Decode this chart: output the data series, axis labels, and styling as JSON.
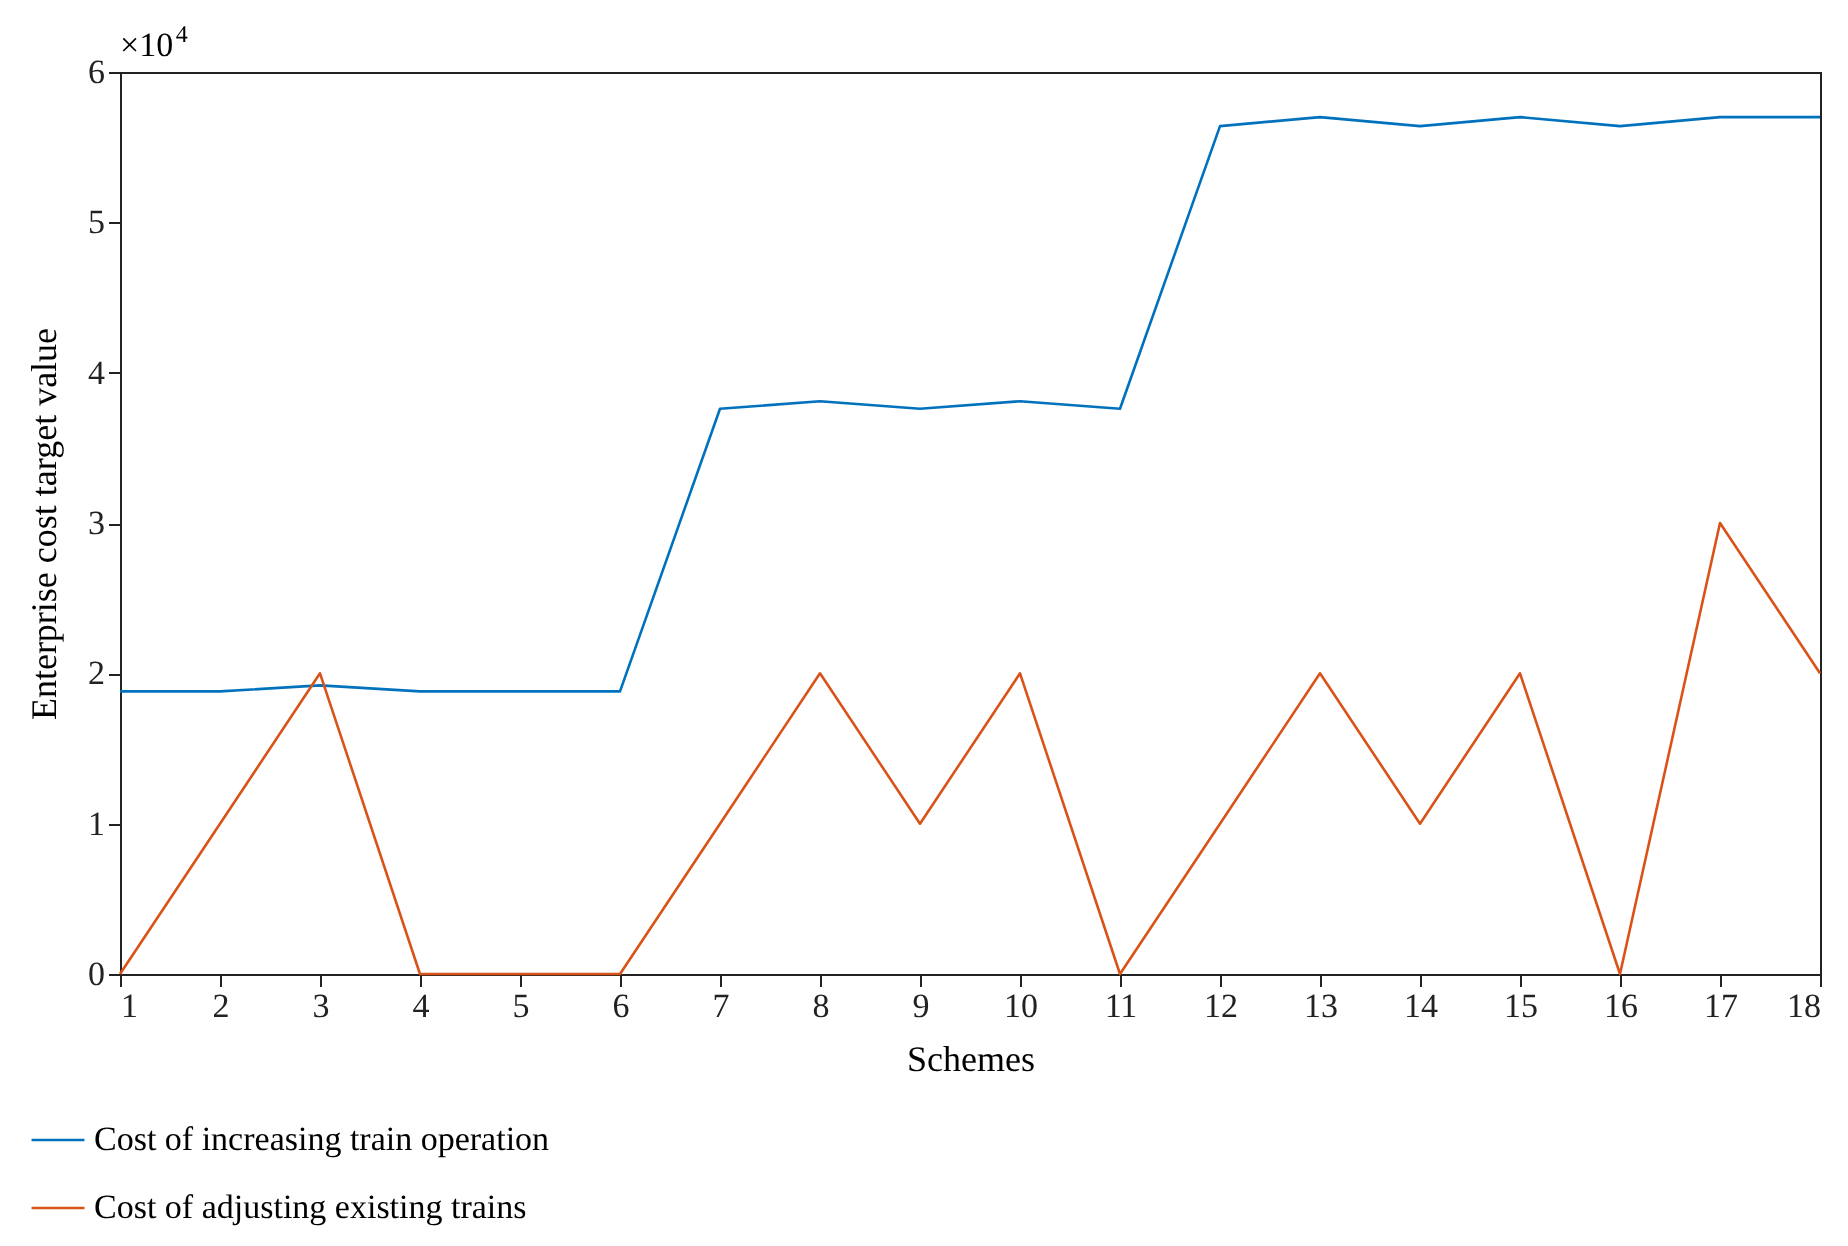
{
  "chart_data": {
    "type": "line",
    "xlabel": "Schemes",
    "ylabel": "Enterprise cost target value",
    "annotations": [
      "×10$^{4}$"
    ],
    "x": [
      1,
      2,
      3,
      4,
      5,
      6,
      7,
      8,
      9,
      10,
      11,
      12,
      13,
      14,
      15,
      16,
      17,
      18
    ],
    "xlim": [
      1,
      18
    ],
    "xticks": [
      1,
      2,
      3,
      4,
      5,
      6,
      7,
      8,
      9,
      10,
      11,
      12,
      13,
      14,
      15,
      16,
      17,
      18
    ],
    "ylim": [
      0,
      6
    ],
    "yticks": [
      0,
      1,
      2,
      3,
      4,
      5,
      6
    ],
    "grid": false,
    "legend": "bottom left",
    "line_style": "solid",
    "marker": "none",
    "series": [
      {
        "name": "Cost of increasing train operation",
        "color": "#0072bd",
        "values": [
          1.88,
          1.88,
          1.92,
          1.88,
          1.88,
          1.88,
          3.76,
          3.81,
          3.76,
          3.81,
          3.76,
          5.64,
          5.7,
          5.64,
          5.7,
          5.64,
          5.7,
          5.7
        ]
      },
      {
        "name": "Cost of adjusting existing trains",
        "color": "#d95319",
        "values": [
          0,
          1,
          2,
          0,
          0,
          0,
          1,
          2,
          1,
          2,
          0,
          1,
          2,
          1,
          2,
          0,
          3,
          2
        ]
      }
    ]
  }
}
